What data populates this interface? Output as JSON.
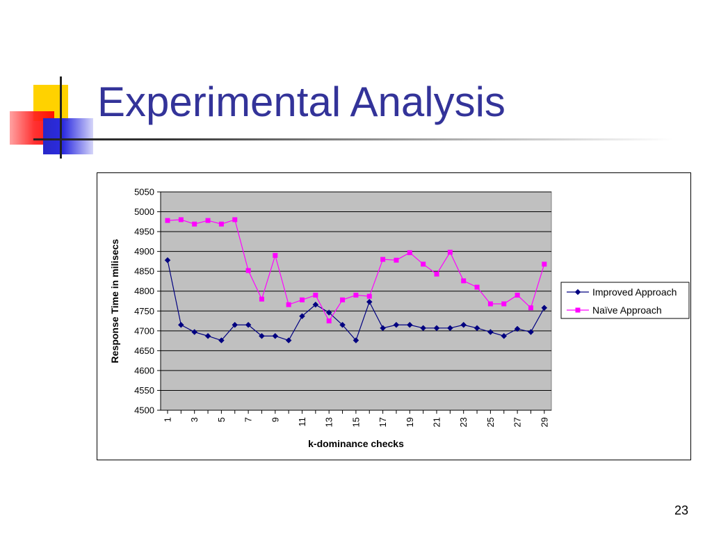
{
  "slide": {
    "title": "Experimental Analysis",
    "page_number": "23"
  },
  "colors": {
    "title": "#333399",
    "plot_background": "#c0c0c0",
    "improved": "#000080",
    "naive": "#ff00ff"
  },
  "chart_data": {
    "type": "line",
    "title": "",
    "xlabel": "k-dominance checks",
    "ylabel": "Response Time in milisecs",
    "ylim": [
      4500,
      5050
    ],
    "ytick_step": 50,
    "x": [
      1,
      2,
      3,
      4,
      5,
      6,
      7,
      8,
      9,
      10,
      11,
      12,
      13,
      14,
      15,
      16,
      17,
      18,
      19,
      20,
      21,
      22,
      23,
      24,
      25,
      26,
      27,
      28,
      29
    ],
    "xtick_labels": [
      "1",
      "3",
      "5",
      "7",
      "9",
      "11",
      "13",
      "15",
      "17",
      "19",
      "21",
      "23",
      "25",
      "27",
      "29"
    ],
    "grid": true,
    "legend_position": "right",
    "series": [
      {
        "name": "Improved Approach",
        "marker": "diamond",
        "values": [
          4878,
          4715,
          4697,
          4687,
          4676,
          4715,
          4715,
          4687,
          4687,
          4676,
          4737,
          4766,
          4746,
          4715,
          4676,
          4773,
          4707,
          4715,
          4715,
          4707,
          4707,
          4707,
          4715,
          4707,
          4697,
          4687,
          4705,
          4697,
          4758
        ]
      },
      {
        "name": "Naïve Approach",
        "marker": "square",
        "values": [
          4978,
          4980,
          4969,
          4978,
          4969,
          4980,
          4852,
          4780,
          4890,
          4766,
          4778,
          4790,
          4725,
          4778,
          4790,
          4787,
          4880,
          4878,
          4897,
          4868,
          4843,
          4898,
          4826,
          4810,
          4768,
          4768,
          4790,
          4758,
          4868
        ]
      }
    ]
  }
}
